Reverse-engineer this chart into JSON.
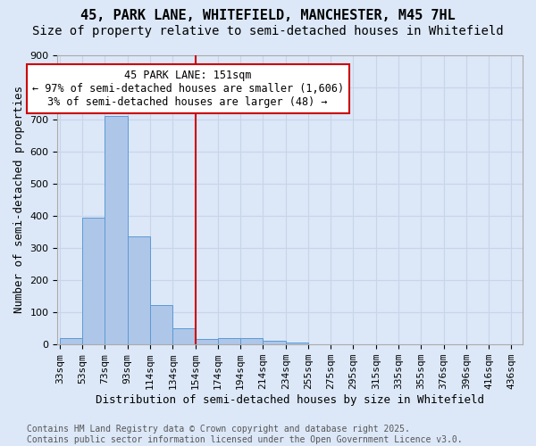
{
  "title_line1": "45, PARK LANE, WHITEFIELD, MANCHESTER, M45 7HL",
  "title_line2": "Size of property relative to semi-detached houses in Whitefield",
  "bar_values": [
    20,
    393,
    711,
    335,
    122,
    50,
    18,
    20,
    20,
    12,
    5,
    0,
    0,
    0,
    0,
    0,
    0,
    0,
    0,
    0
  ],
  "bar_labels": [
    "33sqm",
    "53sqm",
    "73sqm",
    "93sqm",
    "114sqm",
    "134sqm",
    "154sqm",
    "174sqm",
    "194sqm",
    "214sqm",
    "234sqm",
    "255sqm",
    "275sqm",
    "295sqm",
    "315sqm",
    "335sqm",
    "355sqm",
    "376sqm",
    "396sqm",
    "416sqm",
    "436sqm"
  ],
  "bar_color": "#aec6e8",
  "bar_edge_color": "#5b9bd5",
  "xlabel": "Distribution of semi-detached houses by size in Whitefield",
  "ylabel": "Number of semi-detached properties",
  "ylim": [
    0,
    900
  ],
  "yticks": [
    0,
    100,
    200,
    300,
    400,
    500,
    600,
    700,
    800,
    900
  ],
  "ref_line_x": 6.0,
  "ref_line_label": "45 PARK LANE: 151sqm",
  "annotation_line1": "← 97% of semi-detached houses are smaller (1,606)",
  "annotation_line2": "3% of semi-detached houses are larger (48) →",
  "annotation_box_color": "#ffffff",
  "annotation_box_edge": "#cc0000",
  "ref_line_color": "#cc0000",
  "grid_color": "#c8d4e8",
  "background_color": "#dce8f8",
  "footer_line1": "Contains HM Land Registry data © Crown copyright and database right 2025.",
  "footer_line2": "Contains public sector information licensed under the Open Government Licence v3.0.",
  "title_fontsize": 11,
  "subtitle_fontsize": 10,
  "axis_label_fontsize": 9,
  "tick_fontsize": 8,
  "annotation_fontsize": 8.5,
  "footer_fontsize": 7
}
